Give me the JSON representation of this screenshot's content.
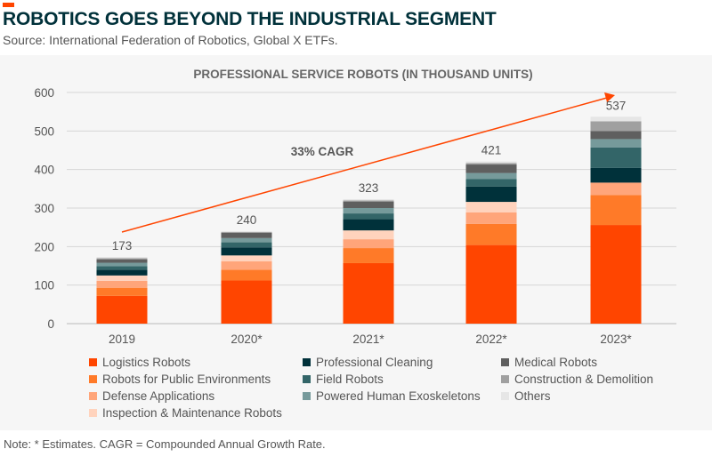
{
  "header": {
    "title": "ROBOTICS GOES BEYOND THE INDUSTRIAL SEGMENT",
    "source": "Source: International Federation of Robotics, Global X ETFs."
  },
  "note": "Note: * Estimates. CAGR = Compounded Annual Growth Rate.",
  "chart_data": {
    "type": "bar",
    "stacked": true,
    "title": "PROFESSIONAL SERVICE ROBOTS (IN THOUSAND UNITS)",
    "categories": [
      "2019",
      "2020*",
      "2021*",
      "2022*",
      "2023*"
    ],
    "totals": [
      173,
      240,
      323,
      421,
      537
    ],
    "ylim": [
      0,
      600
    ],
    "yticks": [
      0,
      100,
      200,
      300,
      400,
      500,
      600
    ],
    "grid": true,
    "legend_position": "bottom",
    "annotation": "33% CAGR",
    "series": [
      {
        "name": "Logistics Robots",
        "color": "#ff4500",
        "values": [
          72,
          112,
          157,
          204,
          256
        ]
      },
      {
        "name": "Robots for Public Environments",
        "color": "#ff7a28",
        "values": [
          21,
          28,
          39,
          55,
          78
        ]
      },
      {
        "name": "Defense Applications",
        "color": "#ffa57a",
        "values": [
          18,
          22,
          23,
          30,
          32
        ]
      },
      {
        "name": "Inspection & Maintenance Robots",
        "color": "#ffd3bd",
        "values": [
          14,
          15,
          23,
          27,
          0
        ]
      },
      {
        "name": "Professional Cleaning",
        "color": "#00313a",
        "values": [
          15,
          21,
          29,
          40,
          38
        ]
      },
      {
        "name": "Field Robots",
        "color": "#336568",
        "values": [
          9,
          13,
          15,
          19,
          53
        ]
      },
      {
        "name": "Powered Human Exoskeletons",
        "color": "#769a9b",
        "values": [
          9,
          11,
          14,
          16,
          22
        ]
      },
      {
        "name": "Medical Robots",
        "color": "#5f5f5f",
        "values": [
          9,
          14,
          17,
          22,
          21
        ]
      },
      {
        "name": "Construction & Demolition",
        "color": "#a0a0a0",
        "values": [
          3,
          2,
          3,
          4,
          25
        ]
      },
      {
        "name": "Others",
        "color": "#e6e6e6",
        "values": [
          3,
          2,
          3,
          4,
          12
        ]
      }
    ]
  }
}
